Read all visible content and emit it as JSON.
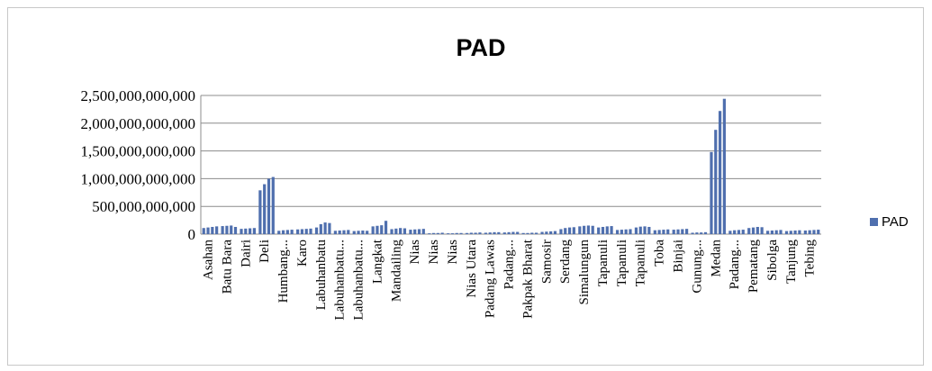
{
  "chart_data": {
    "type": "bar",
    "title": "PAD",
    "xlabel": "",
    "ylabel": "",
    "ylim": [
      0,
      2500000000000
    ],
    "yticks": [
      0,
      500000000000,
      1000000000000,
      1500000000000,
      2000000000000,
      2500000000000
    ],
    "ytick_labels": [
      "0",
      "500,000,000,000",
      "1,000,000,000,000",
      "1,500,000,000,000",
      "2,000,000,000,000",
      "2,500,000,000,000"
    ],
    "grid": true,
    "legend_position": "right",
    "colors": {
      "bar": "#4f6fae",
      "grid": "#8c8c8c",
      "axis": "#8c8c8c"
    },
    "categories": [
      "Asahan",
      "Batu Bara",
      "Dairi",
      "Deli",
      "Humbang...",
      "Karo",
      "Labuhanbatu",
      "Labuhanbatu...",
      "Labuhanbatu...",
      "Langkat",
      "Mandailing",
      "Nias",
      "Nias",
      "Nias",
      "Nias Utara",
      "Padang Lawas",
      "Padang...",
      "Pakpak Bharat",
      "Samosir",
      "Serdang",
      "Simalungun",
      "Tapanuli",
      "Tapanuli",
      "Tapanuli",
      "Toba",
      "Binjai",
      "Gunung...",
      "Medan",
      "Padang...",
      "Pematang",
      "Sibolga",
      "Tanjung",
      "Tebing"
    ],
    "series": [
      {
        "name": "PAD",
        "values": [
          [
            110000000000,
            120000000000,
            130000000000,
            140000000000
          ],
          [
            145000000000,
            150000000000,
            155000000000,
            130000000000
          ],
          [
            95000000000,
            100000000000,
            105000000000,
            110000000000
          ],
          [
            790000000000,
            900000000000,
            1000000000000,
            1030000000000
          ],
          [
            60000000000,
            70000000000,
            75000000000,
            80000000000
          ],
          [
            85000000000,
            90000000000,
            95000000000,
            100000000000
          ],
          [
            120000000000,
            180000000000,
            210000000000,
            200000000000
          ],
          [
            60000000000,
            65000000000,
            70000000000,
            75000000000
          ],
          [
            55000000000,
            60000000000,
            65000000000,
            60000000000
          ],
          [
            140000000000,
            150000000000,
            160000000000,
            240000000000
          ],
          [
            90000000000,
            100000000000,
            110000000000,
            105000000000
          ],
          [
            80000000000,
            85000000000,
            90000000000,
            95000000000
          ],
          [
            15000000000,
            20000000000,
            20000000000,
            25000000000
          ],
          [
            15000000000,
            15000000000,
            20000000000,
            20000000000
          ],
          [
            20000000000,
            25000000000,
            25000000000,
            30000000000
          ],
          [
            25000000000,
            30000000000,
            35000000000,
            35000000000
          ],
          [
            30000000000,
            35000000000,
            40000000000,
            40000000000
          ],
          [
            20000000000,
            20000000000,
            25000000000,
            25000000000
          ],
          [
            40000000000,
            45000000000,
            50000000000,
            55000000000
          ],
          [
            90000000000,
            110000000000,
            120000000000,
            125000000000
          ],
          [
            140000000000,
            150000000000,
            155000000000,
            150000000000
          ],
          [
            120000000000,
            130000000000,
            140000000000,
            145000000000
          ],
          [
            75000000000,
            80000000000,
            85000000000,
            90000000000
          ],
          [
            120000000000,
            135000000000,
            140000000000,
            130000000000
          ],
          [
            70000000000,
            75000000000,
            80000000000,
            85000000000
          ],
          [
            80000000000,
            85000000000,
            90000000000,
            95000000000
          ],
          [
            25000000000,
            30000000000,
            30000000000,
            35000000000
          ],
          [
            1480000000000,
            1880000000000,
            2220000000000,
            2440000000000
          ],
          [
            60000000000,
            70000000000,
            75000000000,
            80000000000
          ],
          [
            110000000000,
            120000000000,
            130000000000,
            125000000000
          ],
          [
            60000000000,
            65000000000,
            70000000000,
            75000000000
          ],
          [
            55000000000,
            60000000000,
            65000000000,
            70000000000
          ],
          [
            65000000000,
            70000000000,
            75000000000,
            80000000000
          ]
        ]
      }
    ]
  }
}
